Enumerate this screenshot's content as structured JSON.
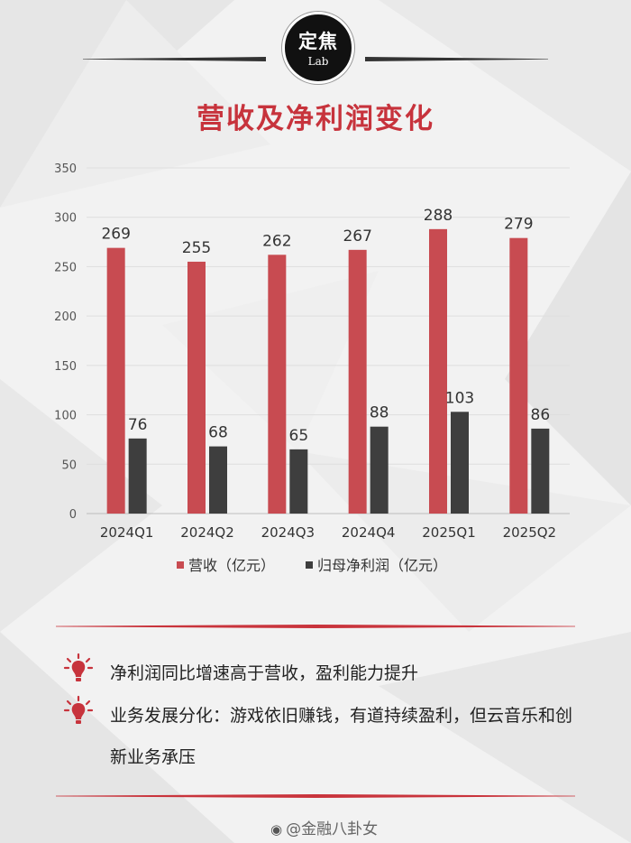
{
  "logo": {
    "line1": "定焦",
    "line2": "Lab"
  },
  "title": "营收及净利润变化",
  "chart_data": {
    "type": "bar",
    "categories": [
      "2024Q1",
      "2024Q2",
      "2024Q3",
      "2024Q4",
      "2025Q1",
      "2025Q2"
    ],
    "series": [
      {
        "name": "营收（亿元）",
        "values": [
          269,
          255,
          262,
          267,
          288,
          279
        ],
        "color": "#c84b51"
      },
      {
        "name": "归母净利润（亿元）",
        "values": [
          76,
          68,
          65,
          88,
          103,
          86
        ],
        "color": "#3e3e3e"
      }
    ],
    "yticks": [
      0,
      50,
      100,
      150,
      200,
      250,
      300,
      350
    ],
    "ylim": [
      0,
      350
    ],
    "grid": true,
    "legend": "bottom",
    "data_labels": true
  },
  "notes": [
    {
      "icon": "lightbulb-icon",
      "text": "净利润同比增速高于营收，盈利能力提升"
    },
    {
      "icon": "lightbulb-icon",
      "text": "业务发展分化：游戏依旧赚钱，有道持续盈利，但云音乐和创新业务承压"
    }
  ],
  "watermark": {
    "icon": "weibo-icon",
    "text": "@金融八卦女"
  },
  "colors": {
    "accent": "#c7333c",
    "revenue": "#c84b51",
    "profit": "#3e3e3e"
  }
}
